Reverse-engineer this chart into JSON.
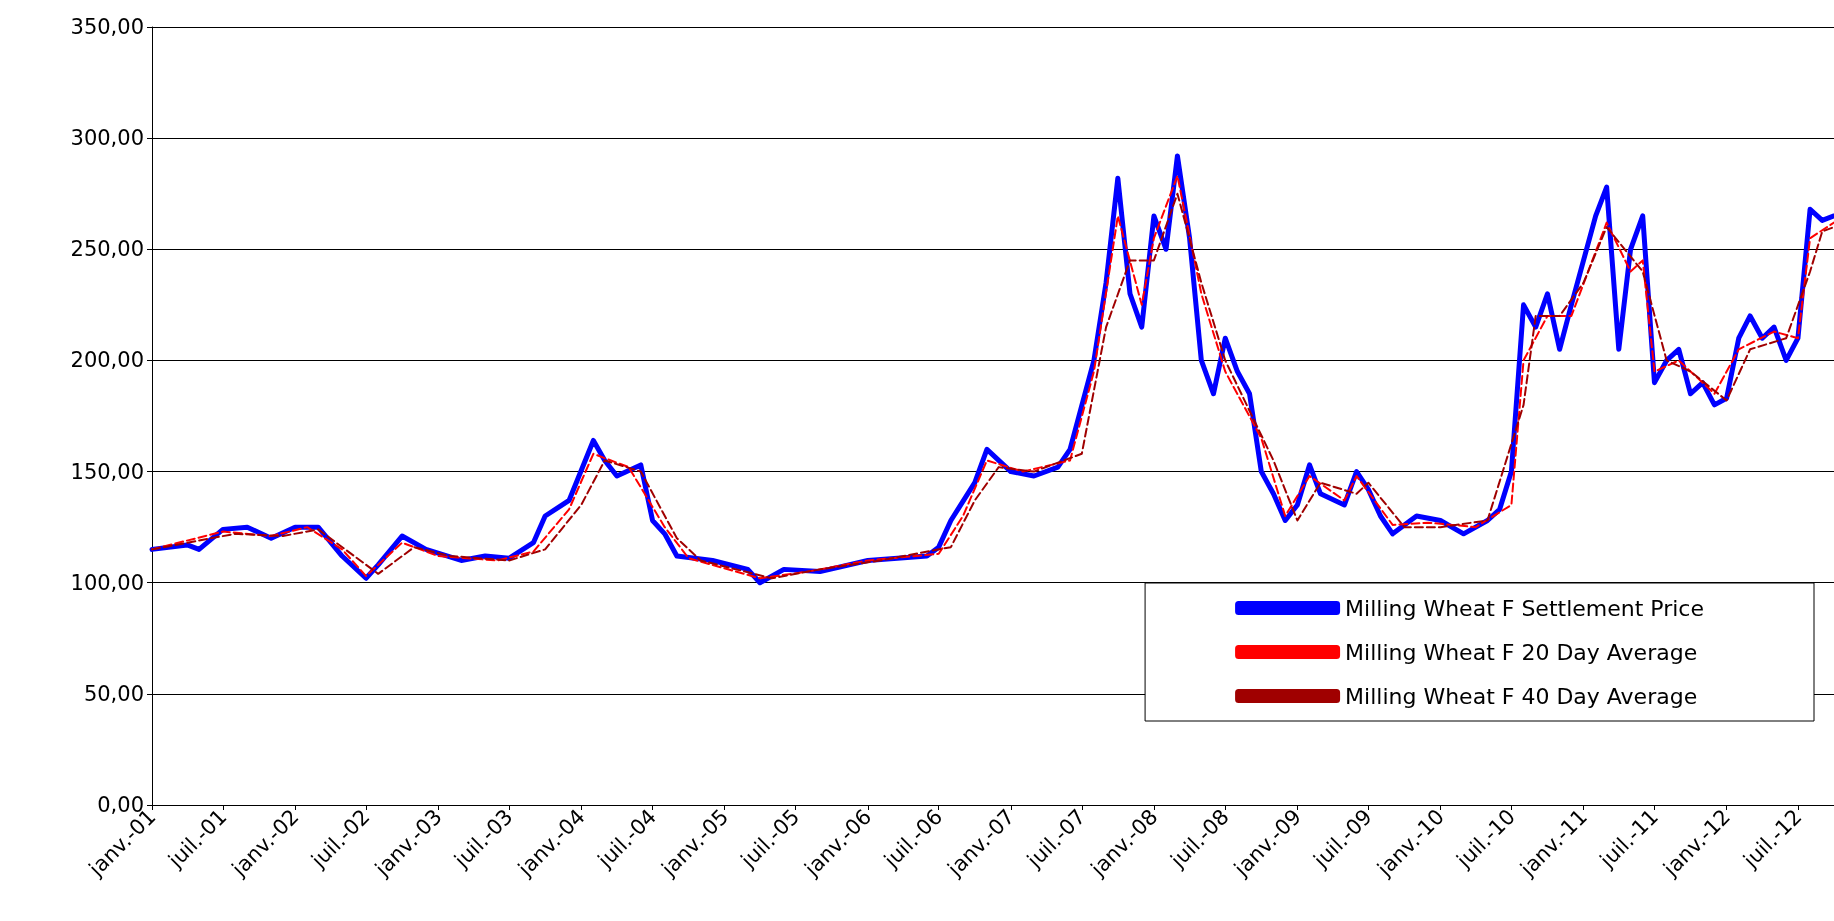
{
  "chart_data": {
    "type": "line",
    "ylim": [
      0,
      350
    ],
    "yticks": [
      {
        "value": 0,
        "label": "0,00"
      },
      {
        "value": 50,
        "label": "50,00"
      },
      {
        "value": 100,
        "label": "100,00"
      },
      {
        "value": 150,
        "label": "150,00"
      },
      {
        "value": 200,
        "label": "200,00"
      },
      {
        "value": 250,
        "label": "250,00"
      },
      {
        "value": 300,
        "label": "300,00"
      },
      {
        "value": 350,
        "label": "350,00"
      }
    ],
    "xlim": [
      "2001-01",
      "2012-10"
    ],
    "xticks": [
      {
        "value": "2001-01",
        "label": "janv.-01"
      },
      {
        "value": "2001-07",
        "label": "juil.-01"
      },
      {
        "value": "2002-01",
        "label": "janv.-02"
      },
      {
        "value": "2002-07",
        "label": "juil.-02"
      },
      {
        "value": "2003-01",
        "label": "janv.-03"
      },
      {
        "value": "2003-07",
        "label": "juil.-03"
      },
      {
        "value": "2004-01",
        "label": "janv.-04"
      },
      {
        "value": "2004-07",
        "label": "juil.-04"
      },
      {
        "value": "2005-01",
        "label": "janv.-05"
      },
      {
        "value": "2005-07",
        "label": "juil.-05"
      },
      {
        "value": "2006-01",
        "label": "janv.-06"
      },
      {
        "value": "2006-07",
        "label": "juil.-06"
      },
      {
        "value": "2007-01",
        "label": "janv.-07"
      },
      {
        "value": "2007-07",
        "label": "juil.-07"
      },
      {
        "value": "2008-01",
        "label": "janv.-08"
      },
      {
        "value": "2008-07",
        "label": "juil.-08"
      },
      {
        "value": "2009-01",
        "label": "janv.-09"
      },
      {
        "value": "2009-07",
        "label": "juil.-09"
      },
      {
        "value": "2010-01",
        "label": "janv.-10"
      },
      {
        "value": "2010-07",
        "label": "juil.-10"
      },
      {
        "value": "2011-01",
        "label": "janv.-11"
      },
      {
        "value": "2011-07",
        "label": "juil.-11"
      },
      {
        "value": "2012-01",
        "label": "janv.-12"
      },
      {
        "value": "2012-07",
        "label": "juil.-12"
      }
    ],
    "grid": "y",
    "legend": "bottom right",
    "marker": "none",
    "series": [
      {
        "name": "Milling Wheat F Settlement Price",
        "color": "#0000ff",
        "line_style": "solid",
        "x": [
          "2001-01",
          "2001-04",
          "2001-05",
          "2001-07",
          "2001-09",
          "2001-11",
          "2002-01",
          "2002-03",
          "2002-05",
          "2002-07",
          "2002-08",
          "2002-10",
          "2002-12",
          "2003-03",
          "2003-05",
          "2003-07",
          "2003-09",
          "2003-10",
          "2003-12",
          "2004-02",
          "2004-03",
          "2004-04",
          "2004-06",
          "2004-07",
          "2004-08",
          "2004-09",
          "2004-12",
          "2005-03",
          "2005-04",
          "2005-06",
          "2005-09",
          "2006-01",
          "2006-06",
          "2006-07",
          "2006-08",
          "2006-10",
          "2006-11",
          "2007-01",
          "2007-03",
          "2007-05",
          "2007-06",
          "2007-08",
          "2007-09",
          "2007-10",
          "2007-11",
          "2007-12",
          "2008-01",
          "2008-02",
          "2008-03",
          "2008-04",
          "2008-05",
          "2008-06",
          "2008-07",
          "2008-08",
          "2008-09",
          "2008-10",
          "2008-11",
          "2008-12",
          "2009-01",
          "2009-02",
          "2009-03",
          "2009-05",
          "2009-06",
          "2009-07",
          "2009-08",
          "2009-09",
          "2009-11",
          "2010-01",
          "2010-03",
          "2010-05",
          "2010-06",
          "2010-07",
          "2010-08",
          "2010-09",
          "2010-10",
          "2010-11",
          "2010-12",
          "2011-01",
          "2011-02",
          "2011-03",
          "2011-04",
          "2011-05",
          "2011-06",
          "2011-07",
          "2011-08",
          "2011-09",
          "2011-10",
          "2011-11",
          "2011-12",
          "2012-01",
          "2012-02",
          "2012-03",
          "2012-04",
          "2012-05",
          "2012-06",
          "2012-07",
          "2012-08",
          "2012-09",
          "2012-10"
        ],
        "values": [
          115,
          117,
          115,
          124,
          125,
          120,
          125,
          125,
          112,
          102,
          108,
          121,
          115,
          110,
          112,
          111,
          118,
          130,
          137,
          164,
          155,
          148,
          153,
          128,
          122,
          112,
          110,
          106,
          100,
          106,
          105,
          110,
          112,
          116,
          128,
          145,
          160,
          150,
          148,
          152,
          160,
          200,
          235,
          282,
          230,
          215,
          265,
          250,
          292,
          255,
          200,
          185,
          210,
          195,
          185,
          150,
          140,
          128,
          135,
          153,
          140,
          135,
          150,
          142,
          130,
          122,
          130,
          128,
          122,
          128,
          133,
          150,
          225,
          215,
          230,
          205,
          225,
          245,
          265,
          278,
          205,
          250,
          265,
          190,
          200,
          205,
          185,
          190,
          180,
          183,
          210,
          220,
          210,
          215,
          200,
          210,
          268,
          263,
          265
        ]
      },
      {
        "name": "Milling Wheat F 20 Day Average",
        "color": "#ff0000",
        "line_style": "dashed",
        "x": [
          "2001-01",
          "2001-07",
          "2001-11",
          "2002-02",
          "2002-05",
          "2002-07",
          "2002-10",
          "2003-01",
          "2003-06",
          "2003-09",
          "2003-12",
          "2004-02",
          "2004-05",
          "2004-08",
          "2004-10",
          "2005-04",
          "2005-08",
          "2006-01",
          "2006-07",
          "2006-09",
          "2006-11",
          "2007-02",
          "2007-06",
          "2007-08",
          "2007-10",
          "2007-12",
          "2008-01",
          "2008-03",
          "2008-05",
          "2008-07",
          "2008-10",
          "2008-12",
          "2009-02",
          "2009-05",
          "2009-06",
          "2009-09",
          "2009-12",
          "2010-04",
          "2010-07",
          "2010-08",
          "2010-10",
          "2010-12",
          "2011-03",
          "2011-05",
          "2011-06",
          "2011-07",
          "2011-09",
          "2011-12",
          "2012-02",
          "2012-05",
          "2012-07",
          "2012-08",
          "2012-10"
        ],
        "values": [
          115,
          123,
          121,
          125,
          115,
          103,
          118,
          112,
          110,
          114,
          133,
          158,
          152,
          125,
          111,
          102,
          105,
          110,
          113,
          130,
          155,
          150,
          155,
          195,
          265,
          225,
          255,
          283,
          230,
          195,
          165,
          130,
          148,
          137,
          148,
          126,
          127,
          125,
          135,
          200,
          220,
          220,
          262,
          240,
          245,
          195,
          200,
          185,
          205,
          213,
          210,
          255,
          262
        ]
      },
      {
        "name": "Milling Wheat F 40 Day Average",
        "color": "#a00000",
        "line_style": "dashed",
        "x": [
          "2001-01",
          "2001-08",
          "2001-12",
          "2002-03",
          "2002-06",
          "2002-08",
          "2002-11",
          "2003-02",
          "2003-07",
          "2003-10",
          "2004-01",
          "2004-03",
          "2004-06",
          "2004-09",
          "2004-11",
          "2005-05",
          "2005-09",
          "2006-02",
          "2006-08",
          "2006-10",
          "2006-12",
          "2007-03",
          "2007-07",
          "2007-09",
          "2007-11",
          "2008-01",
          "2008-03",
          "2008-05",
          "2008-07",
          "2008-11",
          "2009-01",
          "2009-03",
          "2009-06",
          "2009-07",
          "2009-10",
          "2010-01",
          "2010-05",
          "2010-08",
          "2010-09",
          "2010-11",
          "2011-01",
          "2011-03",
          "2011-06",
          "2011-08",
          "2011-10",
          "2012-01",
          "2012-03",
          "2012-06",
          "2012-08",
          "2012-09",
          "2012-10"
        ],
        "values": [
          115,
          122,
          121,
          124,
          112,
          104,
          116,
          112,
          110,
          115,
          135,
          155,
          150,
          120,
          110,
          102,
          106,
          110,
          116,
          137,
          152,
          150,
          158,
          215,
          245,
          245,
          275,
          235,
          200,
          155,
          128,
          145,
          140,
          145,
          125,
          125,
          128,
          180,
          220,
          220,
          235,
          260,
          240,
          200,
          195,
          182,
          205,
          210,
          240,
          258,
          260
        ]
      }
    ]
  }
}
